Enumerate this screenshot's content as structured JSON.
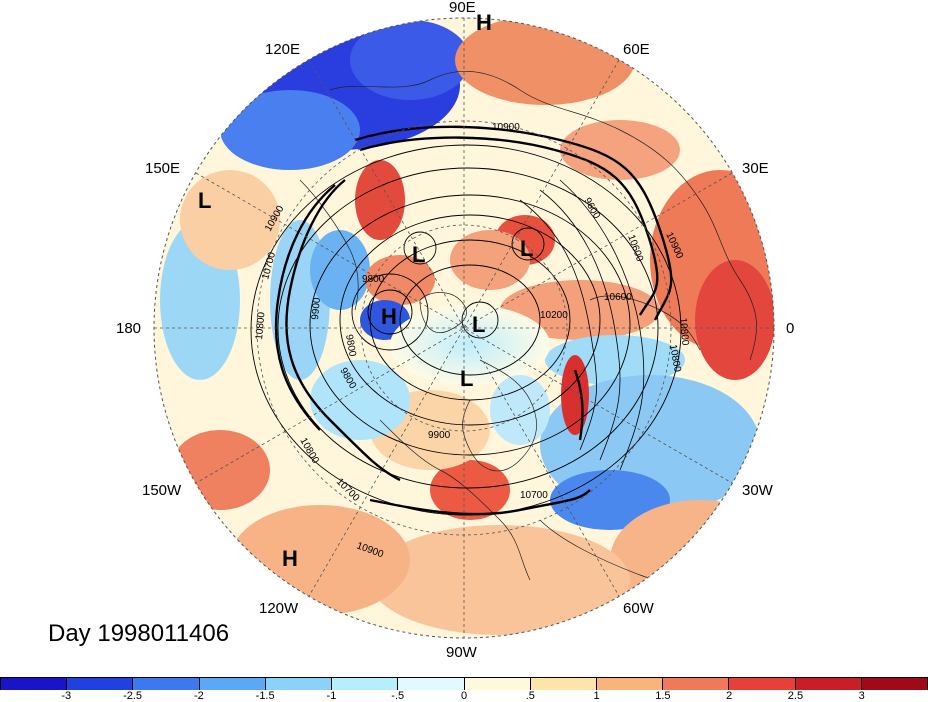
{
  "map": {
    "day_label": "Day 1998011406",
    "longitude_labels": [
      "90E",
      "60E",
      "30E",
      "0",
      "30W",
      "60W",
      "90W",
      "120W",
      "150W",
      "180",
      "150E",
      "120E"
    ],
    "pressure_systems": [
      "H",
      "L",
      "L",
      "L",
      "H",
      "L",
      "L",
      "H"
    ],
    "contour_labels": [
      "10900",
      "10900",
      "10900",
      "10800",
      "10800",
      "10800",
      "10700",
      "10700",
      "10700",
      "10600",
      "9800",
      "9800",
      "9900",
      "9900",
      "10200",
      "9800",
      "10600",
      "9600",
      "10800",
      "10900"
    ],
    "projection": "north polar stereographic",
    "colors": {
      "strong_negative": "#1818d8",
      "negative": "#4a9ff0",
      "weak_negative": "#a8e8f8",
      "neutral": "#fffce0",
      "weak_positive": "#f8d8a0",
      "positive": "#f07050",
      "strong_positive": "#c01020"
    }
  },
  "colorbar": {
    "ticks": [
      "-3",
      "-2.5",
      "-2",
      "-1.5",
      "-1",
      "-.5",
      "0",
      ".5",
      "1",
      "1.5",
      "2",
      "2.5",
      "3"
    ],
    "colors": [
      "#1a14c8",
      "#2040e0",
      "#3c78f0",
      "#5aa8f6",
      "#8ad2fa",
      "#b6eefc",
      "#e0fafe",
      "#fff9dc",
      "#fde4a8",
      "#f9b47a",
      "#f2785a",
      "#e64038",
      "#c81e28",
      "#a00a18"
    ]
  }
}
